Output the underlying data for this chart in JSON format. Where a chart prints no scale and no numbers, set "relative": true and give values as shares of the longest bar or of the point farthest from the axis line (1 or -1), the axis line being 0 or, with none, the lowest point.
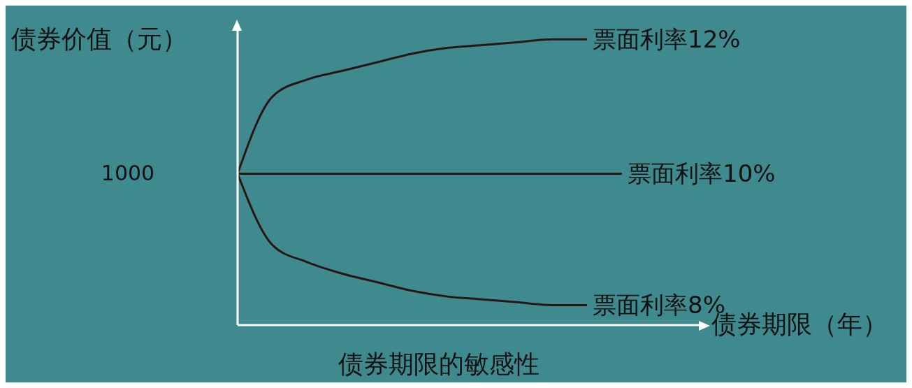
{
  "chart_data": {
    "type": "line",
    "title": "债券期限的敏感性",
    "xlabel": "债券期限（年）",
    "ylabel": "债券价值（元）",
    "relative": true,
    "legend": false,
    "grid": false,
    "marker": "none",
    "line_style": "solid",
    "categories": [
      null,
      null,
      null,
      null,
      null,
      null,
      null,
      null,
      null,
      null,
      null,
      null
    ],
    "annotations": [
      "1000"
    ],
    "series": [
      {
        "name": "票面利率12%",
        "color": "#2a1414",
        "values": [
          0.53,
          0.8,
          0.86,
          0.89,
          0.92,
          0.95,
          0.97,
          0.98,
          0.99,
          1,
          1,
          null
        ]
      },
      {
        "name": "票面利率10%",
        "color": "#2a1414",
        "values": [
          0.53,
          0.53,
          0.53,
          0.53,
          0.53,
          0.53,
          0.53,
          0.53,
          0.53,
          0.53,
          0.53,
          0.53
        ]
      },
      {
        "name": "票面利率8%",
        "color": "#2a1414",
        "values": [
          0.53,
          0.28,
          0.22,
          0.18,
          0.15,
          0.12,
          0.1,
          0.09,
          0.08,
          0.07,
          0.07,
          null
        ]
      }
    ]
  }
}
